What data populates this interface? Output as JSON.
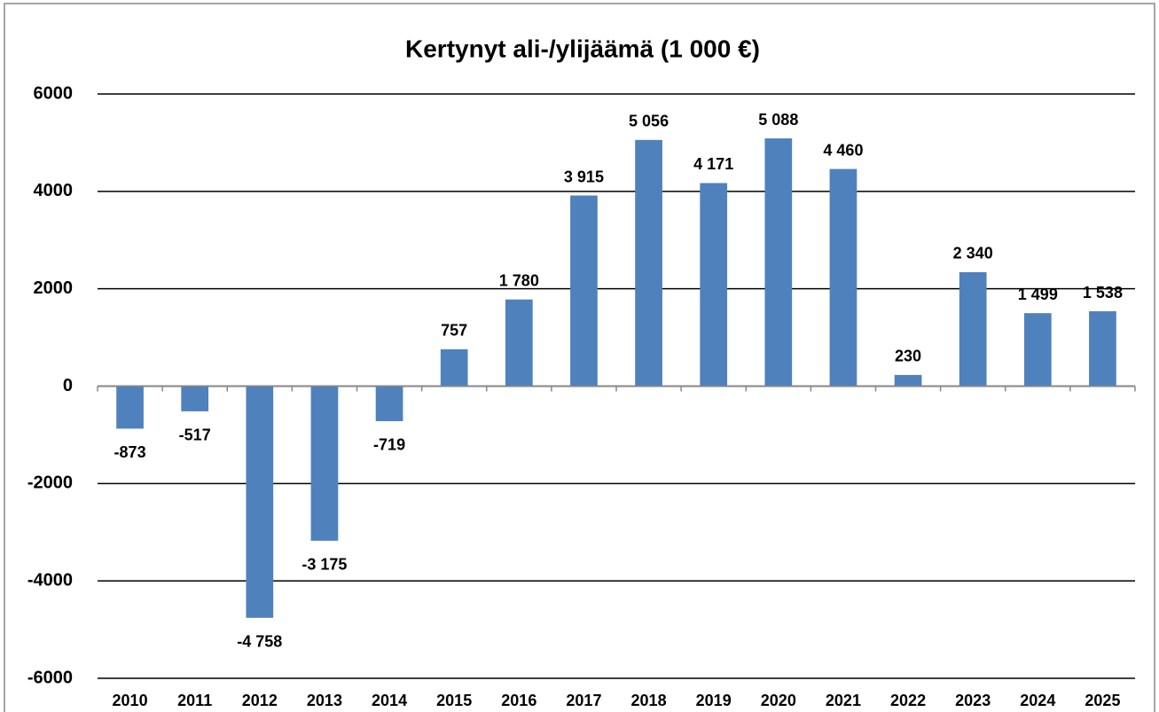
{
  "chart_data": {
    "type": "bar",
    "title": "Kertynyt ali-/ylijäämä (1 000 €)",
    "categories": [
      "2010",
      "2011",
      "2012",
      "2013",
      "2014",
      "2015",
      "2016",
      "2017",
      "2018",
      "2019",
      "2020",
      "2021",
      "2022",
      "2023",
      "2024",
      "2025"
    ],
    "values": [
      -873,
      -517,
      -4758,
      -3175,
      -719,
      757,
      1780,
      3915,
      5056,
      4171,
      5088,
      4460,
      230,
      2340,
      1499,
      1538
    ],
    "value_labels": [
      "-873",
      "-517",
      "-4 758",
      "-3 175",
      "-719",
      "757",
      "1 780",
      "3 915",
      "5 056",
      "4 171",
      "5 088",
      "4 460",
      "230",
      "2 340",
      "1 499",
      "1 538"
    ],
    "color": "#4f81bd",
    "ylim": [
      -6000,
      6000
    ],
    "yticks": [
      -6000,
      -4000,
      -2000,
      0,
      2000,
      4000,
      6000
    ],
    "grid": true
  }
}
